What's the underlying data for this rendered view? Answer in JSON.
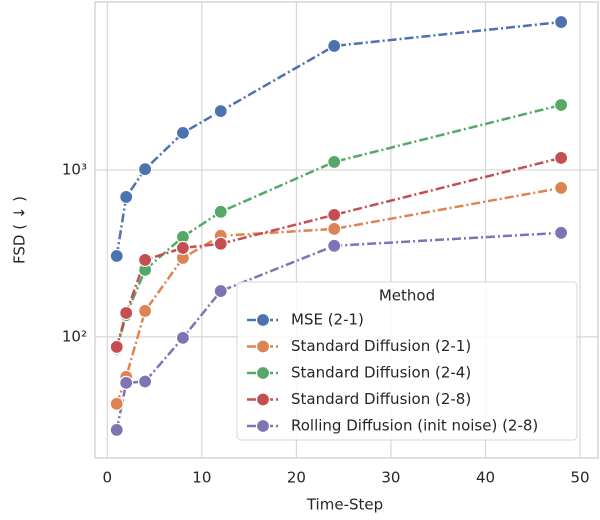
{
  "chart_data": {
    "type": "line",
    "x_label": "Time-Step",
    "y_label": "FSD ( ↓ )",
    "xlim": [
      -1.3,
      51.9
    ],
    "xticks": [
      0,
      10,
      20,
      30,
      40,
      50
    ],
    "ylim": [
      18.8,
      10140
    ],
    "log_y": true,
    "yticks": [
      {
        "value": 100,
        "label": "10²"
      },
      {
        "value": 1000,
        "label": "10³"
      }
    ],
    "grid": true,
    "legend_title": "Method",
    "legend_loc": "lower right",
    "x": [
      1,
      2,
      4,
      8,
      12,
      24,
      48
    ],
    "series": [
      {
        "name": "MSE (2-1)",
        "color": "#4c72b0",
        "values": [
          305,
          689,
          1010,
          1667,
          2250,
          5530,
          7690
        ]
      },
      {
        "name": "Standard Diffusion (2-1)",
        "color": "#dd8452",
        "values": [
          39.7,
          57.6,
          143,
          297,
          403,
          443,
          780
        ]
      },
      {
        "name": "Standard Diffusion (2-4)",
        "color": "#55a868",
        "values": [
          85,
          135,
          252,
          397,
          561,
          1117,
          2450
        ]
      },
      {
        "name": "Standard Diffusion (2-8)",
        "color": "#c44e52",
        "values": [
          87,
          139,
          289,
          341,
          361,
          538,
          1180
        ]
      },
      {
        "name": "Rolling Diffusion (init noise) (2-8)",
        "color": "#8172b3",
        "values": [
          27.7,
          53,
          54,
          98.6,
          188,
          351,
          420
        ]
      }
    ]
  }
}
